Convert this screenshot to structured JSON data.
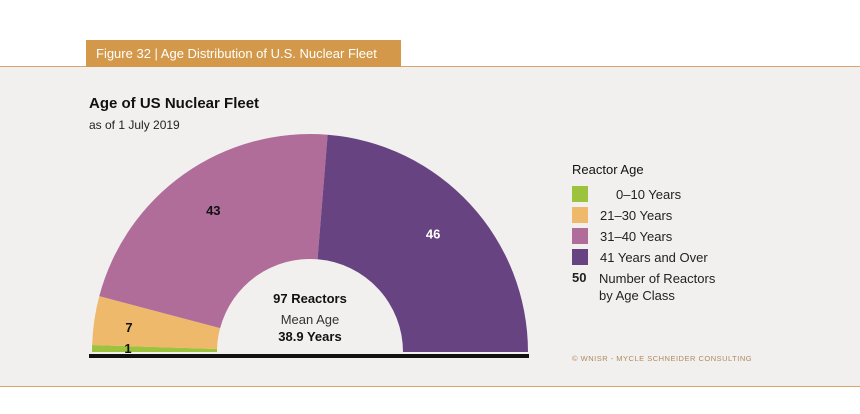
{
  "figure_label": "Figure 32 |  Age Distribution of U.S. Nuclear Fleet",
  "chart_data": {
    "type": "pie",
    "variant": "semicircle donut",
    "title": "Age of US Nuclear Fleet",
    "subtitle": "as of 1 July 2019",
    "series": [
      {
        "name": "0–10 Years",
        "value": 1,
        "label": "1",
        "color": "#9dc23e"
      },
      {
        "name": "21–30 Years",
        "value": 7,
        "label": "7",
        "color": "#efb96c"
      },
      {
        "name": "31–40 Years",
        "value": 43,
        "label": "43",
        "color": "#b06d9a"
      },
      {
        "name": "41 Years and Over",
        "value": 46,
        "label": "46",
        "color": "#674481"
      }
    ],
    "center": {
      "line1": "97 Reactors",
      "line2": "Mean Age",
      "line3": "38.9 Years"
    }
  },
  "legend": {
    "title": "Reactor Age",
    "items": [
      {
        "label": "0–10 Years",
        "color": "#9dc23e"
      },
      {
        "label": "21–30 Years",
        "color": "#efb96c"
      },
      {
        "label": "31–40 Years",
        "color": "#b06d9a"
      },
      {
        "label": "41 Years and Over",
        "color": "#674481"
      }
    ],
    "key_number": "50",
    "key_text_line1": "Number of Reactors",
    "key_text_line2": "by Age Class"
  },
  "copyright": "© WNISR - MYCLE SCHNEIDER CONSULTING"
}
